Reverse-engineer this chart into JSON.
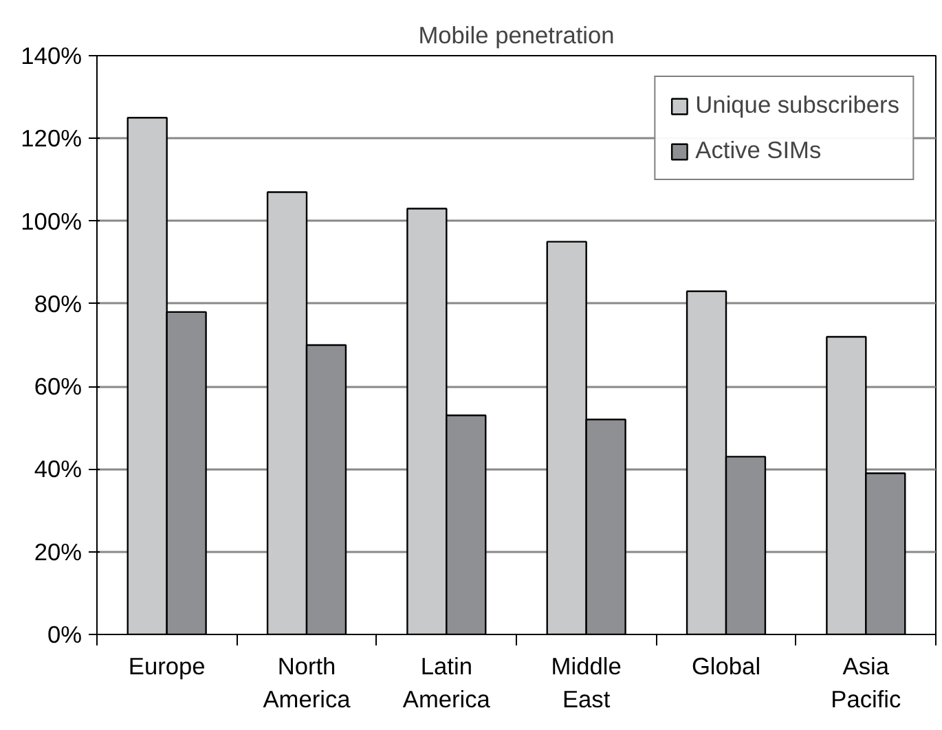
{
  "chart_data": {
    "type": "bar",
    "title": "Mobile penetration",
    "categories": [
      "Europe",
      "North\nAmerica",
      "Latin\nAmerica",
      "Middle\nEast",
      "Global",
      "Asia\nPacific"
    ],
    "series": [
      {
        "name": "Unique subscribers",
        "color": "#c8c9cb",
        "values": [
          125,
          107,
          103,
          95,
          83,
          72
        ]
      },
      {
        "name": "Active SIMs",
        "color": "#8f9094",
        "values": [
          78,
          70,
          53,
          52,
          43,
          39
        ]
      }
    ],
    "ylim": [
      0,
      140
    ],
    "yticks": [
      {
        "value": 0,
        "label": "0%"
      },
      {
        "value": 20,
        "label": "20%"
      },
      {
        "value": 40,
        "label": "40%"
      },
      {
        "value": 60,
        "label": "60%"
      },
      {
        "value": 80,
        "label": "80%"
      },
      {
        "value": 100,
        "label": "100%"
      },
      {
        "value": 120,
        "label": "120%"
      },
      {
        "value": 140,
        "label": "140%"
      }
    ],
    "grid": "y",
    "legend": "top right"
  }
}
